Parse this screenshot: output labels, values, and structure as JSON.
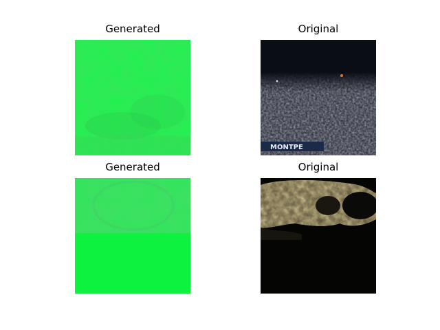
{
  "panels": [
    {
      "title": "Generated"
    },
    {
      "title": "Original",
      "overlay_text": "MONTPE"
    },
    {
      "title": "Generated"
    },
    {
      "title": "Original"
    }
  ]
}
